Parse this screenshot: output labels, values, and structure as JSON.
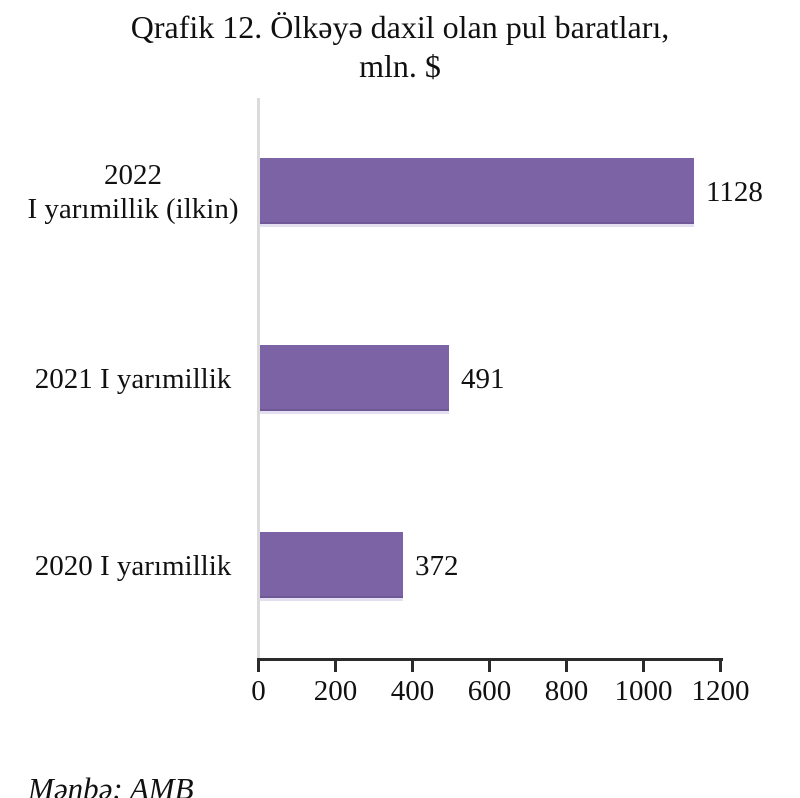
{
  "title": {
    "line1": "Qrafik 12. Ölkəyə daxil olan pul baratları,",
    "line2": "mln. $"
  },
  "source_note": "Mənbə: AMB",
  "colors": {
    "bar_fill": "#7C63A6",
    "bar_edge_dark": "#6F5896",
    "bar_edge_light": "#E4DFF0",
    "axis_line": "#2B2B2B",
    "category_baseline": "#DBDBDB",
    "text": "#111111"
  },
  "chart_data": {
    "type": "bar",
    "orientation": "horizontal",
    "title": "Qrafik 12. Ölkəyə daxil olan pul baratları, mln. $",
    "categories": [
      "2022\nI yarımillik (ilkin)",
      "2021 I yarımillik",
      "2020 I yarımillik"
    ],
    "values": [
      1128,
      491,
      372
    ],
    "data_labels": [
      "1128",
      "491",
      "372"
    ],
    "xlim": [
      0,
      1200
    ],
    "xticks": [
      0,
      200,
      400,
      600,
      800,
      1000,
      1200
    ],
    "grid": false,
    "legend": false,
    "value_labels_position": "end-of-bar"
  }
}
